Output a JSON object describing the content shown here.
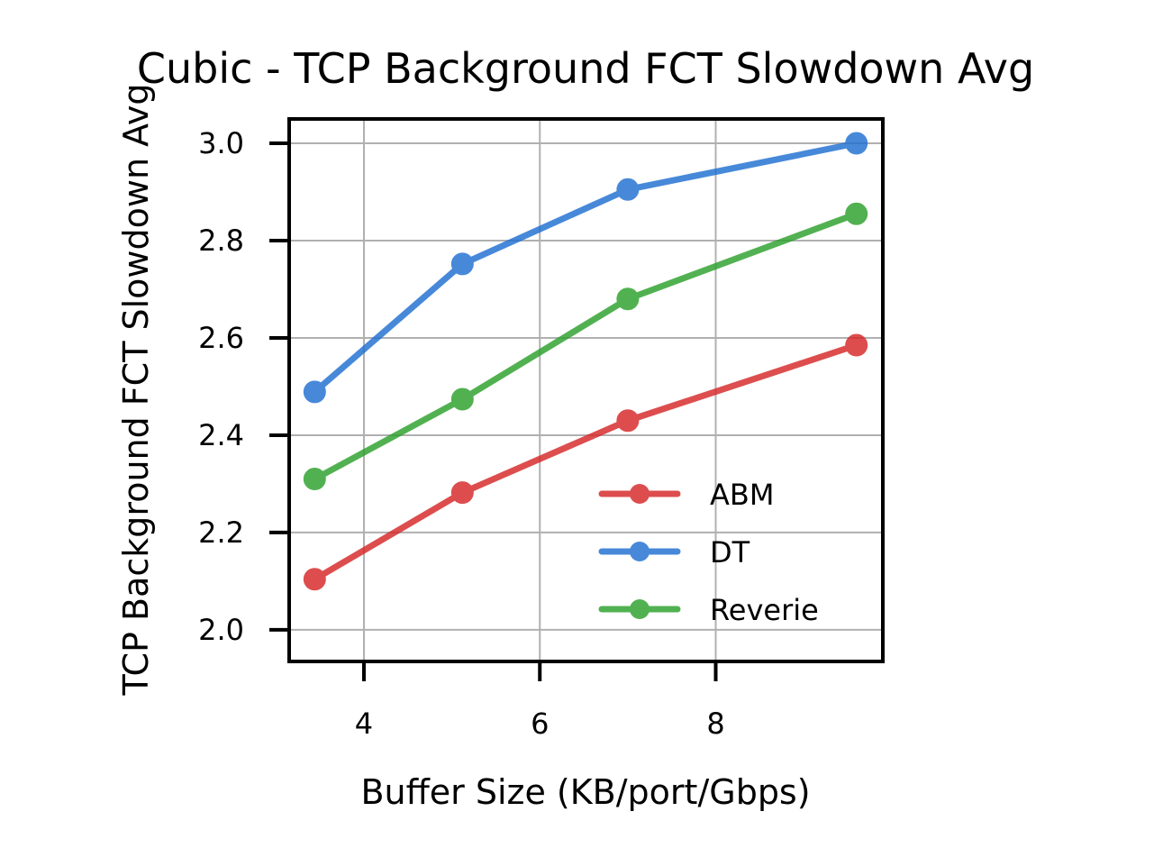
{
  "chart_data": {
    "type": "line",
    "title": "Cubic - TCP Background FCT Slowdown Avg",
    "xlabel": "Buffer Size (KB/port/Gbps)",
    "ylabel": "TCP Background FCT Slowdown Avg",
    "xlim": [
      3.15,
      9.9
    ],
    "ylim": [
      1.935,
      3.05
    ],
    "xticks": [
      4,
      6,
      8
    ],
    "xtick_labels": [
      "4",
      "6",
      "8"
    ],
    "yticks": [
      2.0,
      2.2,
      2.4,
      2.6,
      2.8,
      3.0
    ],
    "ytick_labels": [
      "2.0",
      "2.2",
      "2.4",
      "2.6",
      "2.8",
      "3.0"
    ],
    "grid": true,
    "legend_position": "lower-right",
    "x": [
      3.44,
      5.12,
      7.0,
      9.6
    ],
    "series": [
      {
        "name": "ABM",
        "color": "#d62728",
        "values": [
          2.104,
          2.282,
          2.43,
          2.585
        ]
      },
      {
        "name": "DT",
        "color": "#1f6fd1",
        "values": [
          2.489,
          2.752,
          2.905,
          3.0
        ]
      },
      {
        "name": "Reverie",
        "color": "#2ca02c",
        "values": [
          2.31,
          2.474,
          2.68,
          2.855
        ]
      }
    ]
  }
}
